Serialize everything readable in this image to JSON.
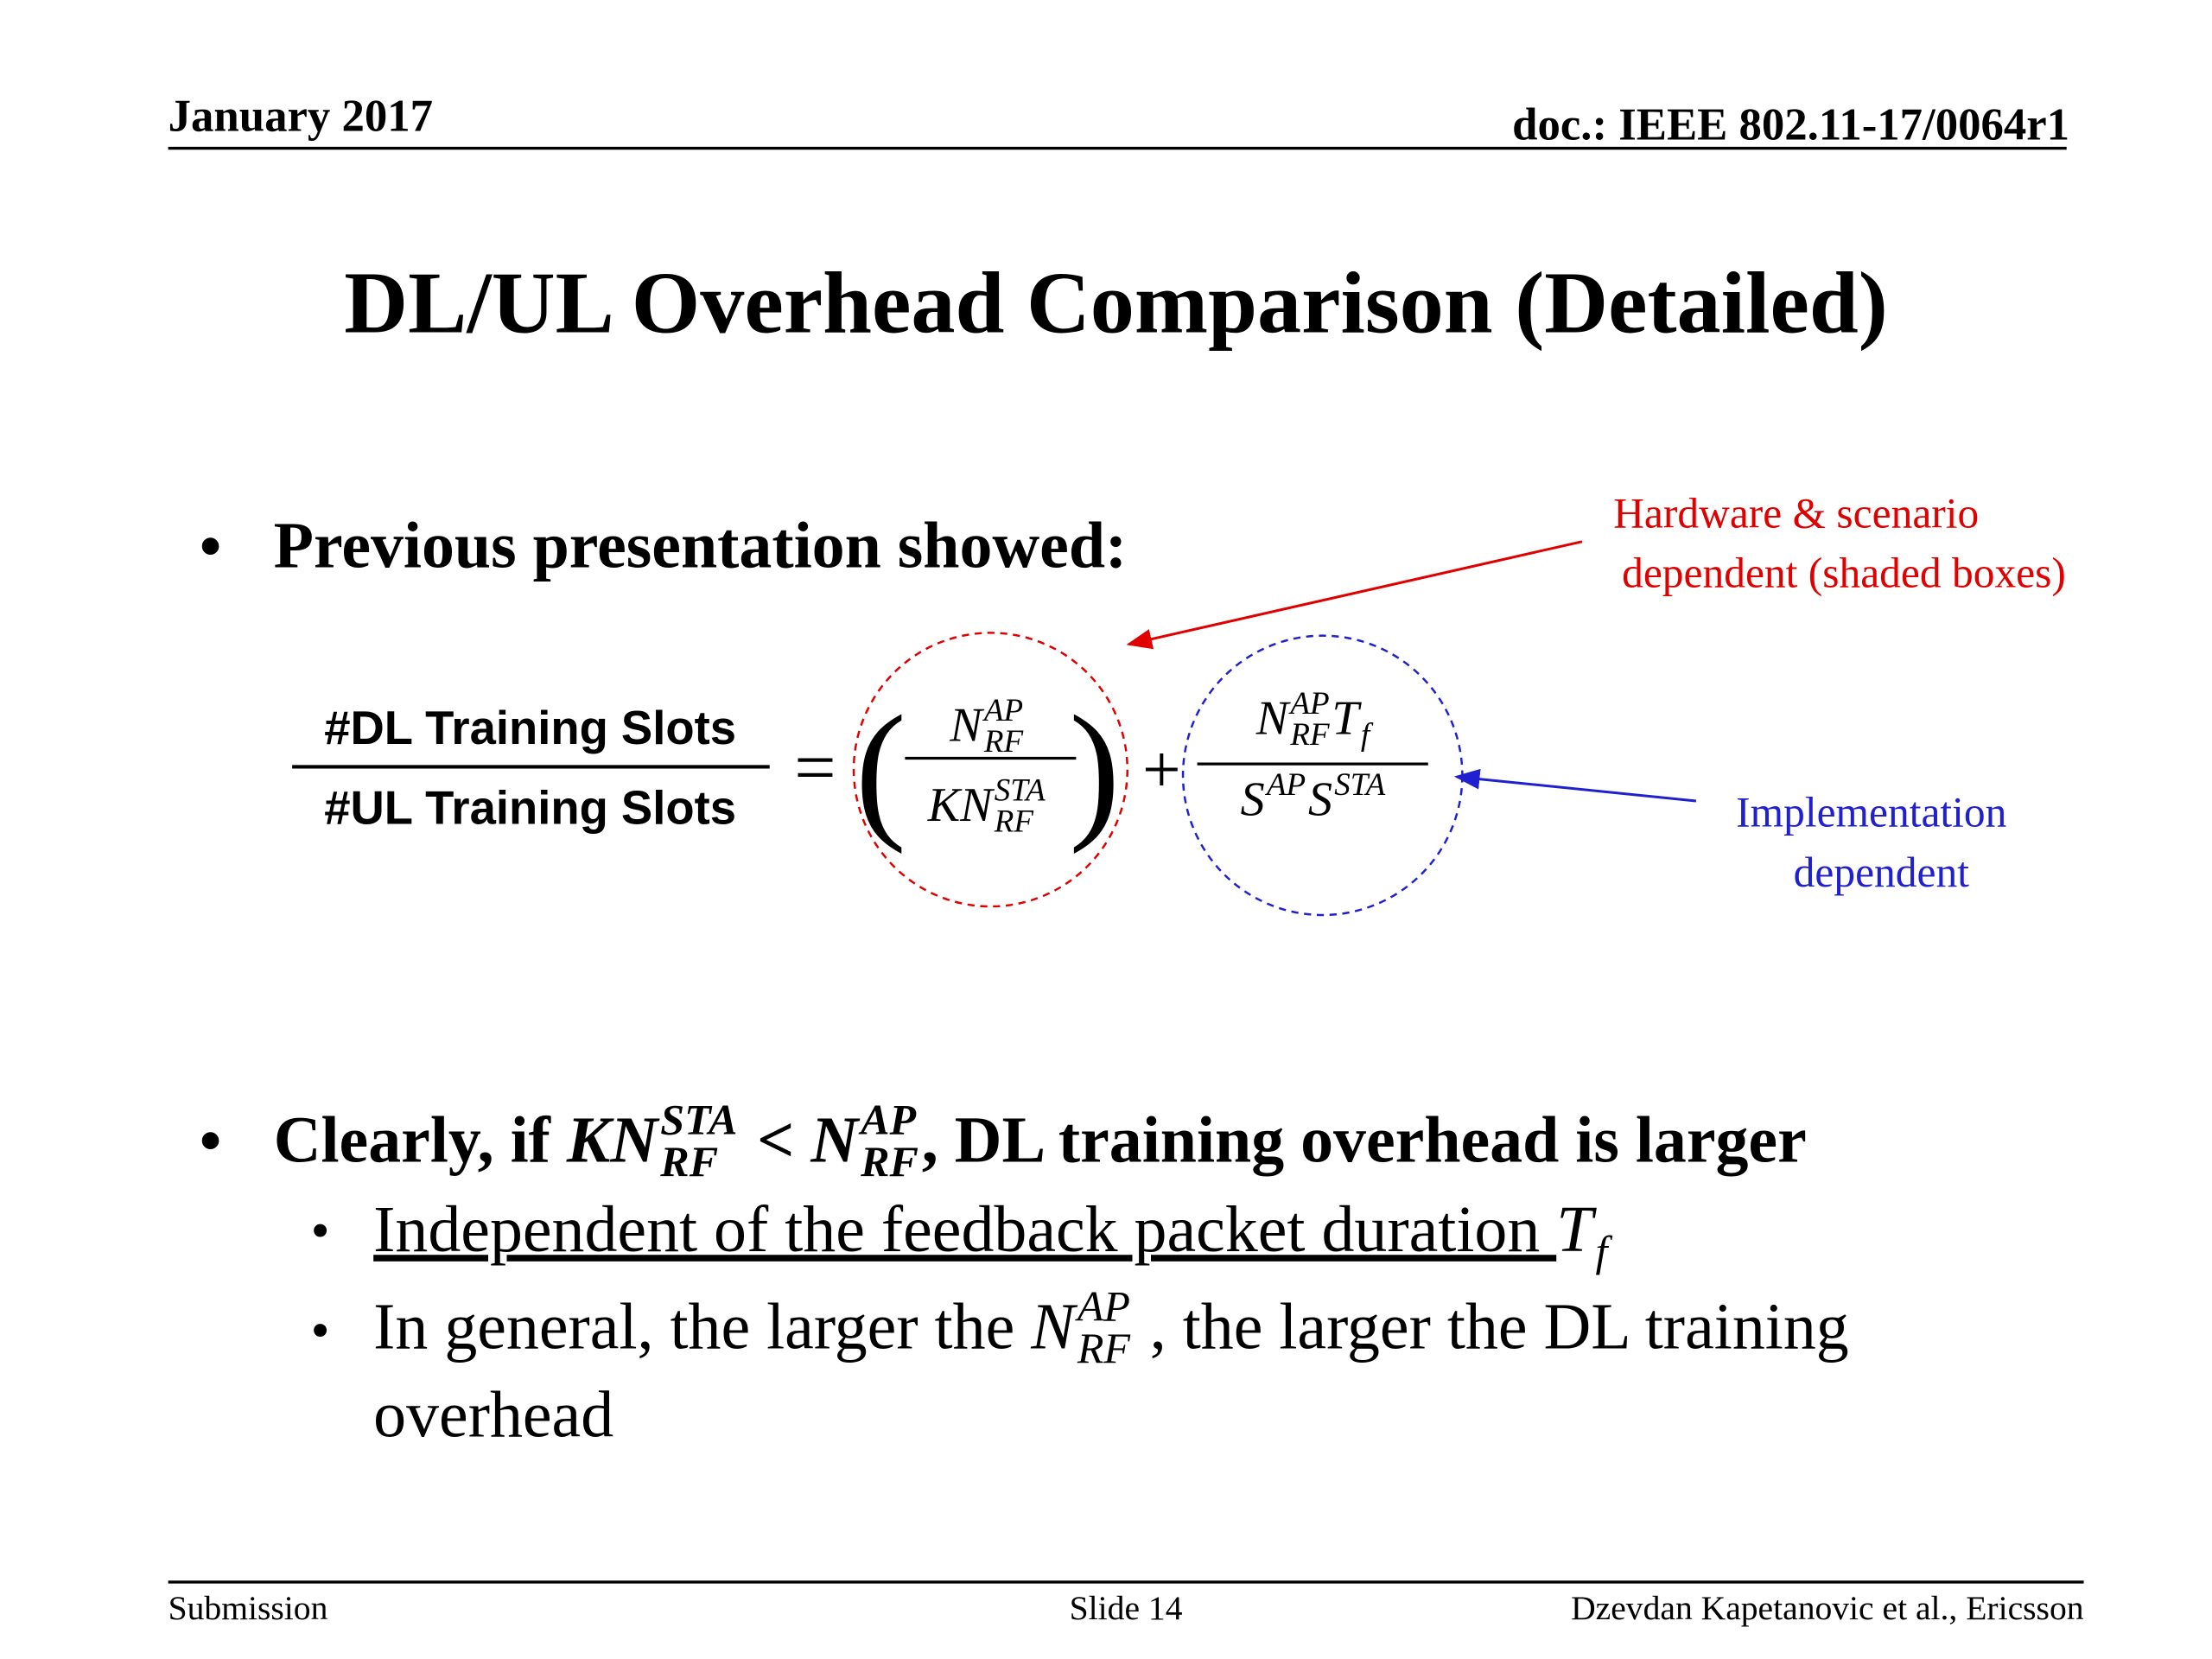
{
  "header": {
    "date": "January 2017",
    "doc": "doc.: IEEE 802.11-17/0064r1"
  },
  "title": "DL/UL Overhead Comparison (Detailed)",
  "bullet1": "Previous presentation showed:",
  "formula": {
    "numerator": "#DL Training Slots",
    "denominator": "#UL Training Slots",
    "equals": "=",
    "open": "(",
    "close": ")",
    "plus": "+",
    "term1": {
      "num": [
        {
          "base": "N",
          "sup": "AP",
          "sub": "RF"
        }
      ],
      "den": [
        {
          "base": "KN",
          "sup": "STA",
          "sub": "RF"
        }
      ]
    },
    "term2": {
      "num": [
        {
          "base": "N",
          "sup": "AP",
          "sub": "RF"
        },
        {
          "base": "T",
          "sub": "f"
        }
      ],
      "den": [
        {
          "base": "S",
          "sup": "AP"
        },
        {
          "base": "S",
          "sup": "STA"
        }
      ]
    }
  },
  "annotations": {
    "hardware": [
      "Hardware & scenario",
      "dependent (shaded boxes)"
    ],
    "implementation": [
      "Implementation",
      "dependent"
    ]
  },
  "bullet2": [
    {
      "text": "Clearly, if "
    },
    {
      "base": "KN",
      "sup": "STA",
      "sub": "RF"
    },
    {
      "text": " < "
    },
    {
      "base": "N",
      "sup": "AP",
      "sub": "RF"
    },
    {
      "text": ", DL training overhead is larger"
    }
  ],
  "subbullets": [
    {
      "lines": [
        [
          {
            "text": "Independent of the feedback packet duration ",
            "underline": true
          },
          {
            "base": "T",
            "sub": "f"
          }
        ]
      ]
    },
    {
      "lines": [
        [
          {
            "text": "In general, the larger the "
          },
          {
            "base": "N",
            "sup": "AP",
            "sub": "RF"
          },
          {
            "text": " , the larger the DL training"
          }
        ],
        [
          {
            "text": "overhead"
          }
        ]
      ]
    }
  ],
  "footer": {
    "left": "Submission",
    "center": "Slide 14",
    "right": "Dzevdan Kapetanovic et al., Ericsson"
  }
}
